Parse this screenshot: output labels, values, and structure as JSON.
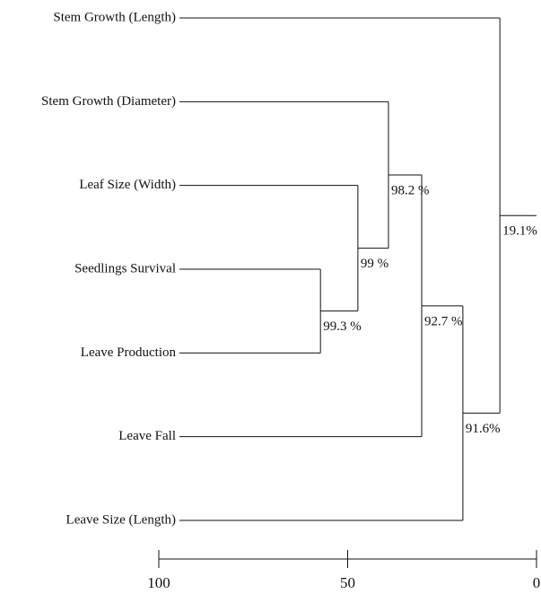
{
  "chart_data": {
    "type": "dendrogram",
    "leaves": [
      "Stem Growth (Length)",
      "Stem Growth (Diameter)",
      "Leaf Size (Width)",
      "Seedlings Survival",
      "Leave Production",
      "Leave Fall",
      "Leave Size (Length)"
    ],
    "merges": [
      {
        "children": [
          3,
          4
        ],
        "height": 57.2,
        "label": "99.3 %"
      },
      {
        "children": [
          2,
          7
        ],
        "height": 47.3,
        "label": "99 %"
      },
      {
        "children": [
          1,
          8
        ],
        "height": 39.2,
        "label": "98.2 %"
      },
      {
        "children": [
          5,
          9
        ],
        "height": 30.4,
        "label": "92.7 %"
      },
      {
        "children": [
          6,
          10
        ],
        "height": 19.5,
        "label": "91.6%"
      },
      {
        "children": [
          0,
          11
        ],
        "height": 9.7,
        "label": "19.1%"
      }
    ],
    "xlim": [
      100,
      0
    ],
    "xticks": [
      100,
      50,
      0
    ]
  }
}
